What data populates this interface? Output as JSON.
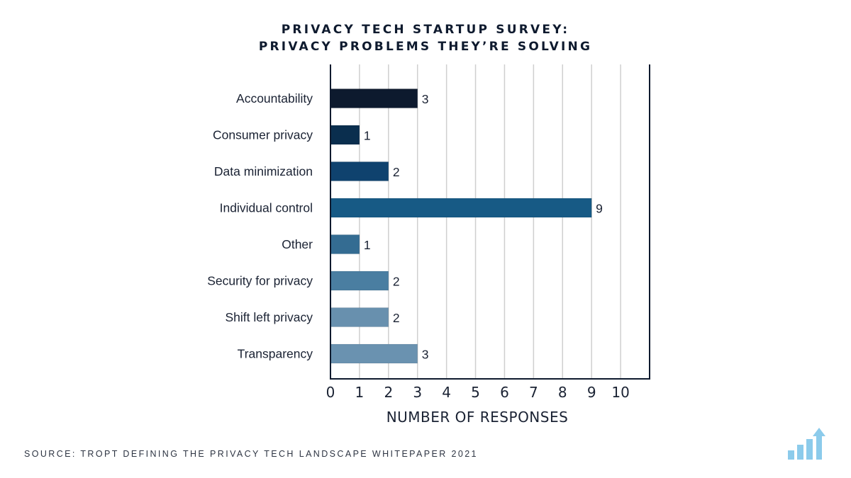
{
  "chart_data": {
    "type": "bar",
    "orientation": "horizontal",
    "title": [
      "PRIVACY TECH STARTUP SURVEY:",
      "PRIVACY PROBLEMS THEY’RE SOLVING"
    ],
    "xlabel": "NUMBER OF RESPONSES",
    "ylabel": "",
    "categories": [
      "Accountability",
      "Consumer privacy",
      "Data minimization",
      "Individual control",
      "Other",
      "Security for privacy",
      "Shift left privacy",
      "Transparency"
    ],
    "values": [
      3,
      1,
      2,
      9,
      1,
      2,
      2,
      3
    ],
    "data_labels": [
      "3",
      "1",
      "2",
      "9",
      "1",
      "2",
      "2",
      "3"
    ],
    "bar_colors": [
      "#0d1a2e",
      "#0a2e4e",
      "#0f426e",
      "#175a85",
      "#346c92",
      "#4a7ea1",
      "#6890ae",
      "#6a92b0"
    ],
    "xlim": [
      0,
      11
    ],
    "xticks": [
      0,
      1,
      2,
      3,
      4,
      5,
      6,
      7,
      8,
      9,
      10
    ],
    "grid": "vertical",
    "legend": "none"
  },
  "footer": {
    "source": "SOURCE: TROPT DEFINING THE PRIVACY TECH LANDSCAPE WHITEPAPER 2021",
    "logo_icon": "bar-chart-growth-icon",
    "logo_color": "#8ccbeb"
  }
}
